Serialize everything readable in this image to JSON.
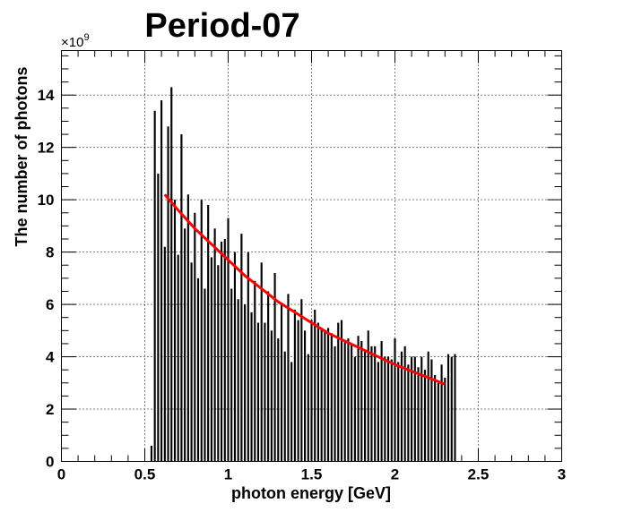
{
  "chart_data": {
    "type": "bar",
    "title": "Period-07",
    "xlabel": "photon energy [GeV]",
    "ylabel": "The number of photons",
    "y_multiplier_label": "×10",
    "y_multiplier_exponent": "9",
    "xlim": [
      0,
      3
    ],
    "ylim": [
      0,
      15.7
    ],
    "x_ticks": [
      "0",
      "0.5",
      "1",
      "1.5",
      "2",
      "2.5",
      "3"
    ],
    "y_ticks": [
      "0",
      "2",
      "4",
      "6",
      "8",
      "10",
      "12",
      "14"
    ],
    "grid": true,
    "bar_width": 0.02,
    "series": [
      {
        "x": [
          0.54,
          0.56,
          0.58,
          0.6,
          0.62,
          0.64,
          0.66,
          0.68,
          0.7,
          0.72,
          0.74,
          0.76,
          0.78,
          0.8,
          0.82,
          0.84,
          0.86,
          0.88,
          0.9,
          0.92,
          0.94,
          0.96,
          0.98,
          1.0,
          1.02,
          1.04,
          1.06,
          1.08,
          1.1,
          1.12,
          1.14,
          1.16,
          1.18,
          1.2,
          1.22,
          1.24,
          1.26,
          1.28,
          1.3,
          1.32,
          1.34,
          1.36,
          1.38,
          1.4,
          1.42,
          1.44,
          1.46,
          1.48,
          1.5,
          1.52,
          1.54,
          1.56,
          1.58,
          1.6,
          1.62,
          1.64,
          1.66,
          1.68,
          1.7,
          1.72,
          1.74,
          1.76,
          1.78,
          1.8,
          1.82,
          1.84,
          1.86,
          1.88,
          1.9,
          1.92,
          1.94,
          1.96,
          1.98,
          2.0,
          2.02,
          2.04,
          2.06,
          2.08,
          2.1,
          2.12,
          2.14,
          2.16,
          2.18,
          2.2,
          2.22,
          2.24,
          2.26,
          2.28,
          2.3,
          2.32,
          2.34,
          2.36
        ],
        "values": [
          0.6,
          13.4,
          11.0,
          13.8,
          8.2,
          12.8,
          14.3,
          10.0,
          7.9,
          12.5,
          8.9,
          10.2,
          7.6,
          9.5,
          7.0,
          10.0,
          6.6,
          9.8,
          7.8,
          8.9,
          7.5,
          8.4,
          8.5,
          9.3,
          6.6,
          8.0,
          6.2,
          8.7,
          6.0,
          8.0,
          5.7,
          6.9,
          5.3,
          7.6,
          5.3,
          6.5,
          5.0,
          7.2,
          4.7,
          6.0,
          4.2,
          6.4,
          3.8,
          5.8,
          5.4,
          6.2,
          5.0,
          4.1,
          5.4,
          5.8,
          5.3,
          5.1,
          5.0,
          5.1,
          4.9,
          4.4,
          5.3,
          5.4,
          4.6,
          4.7,
          4.5,
          4.0,
          4.8,
          4.6,
          4.2,
          5.0,
          4.4,
          4.4,
          3.8,
          4.6,
          4.0,
          4.0,
          3.9,
          4.7,
          3.8,
          4.2,
          4.4,
          3.7,
          4.0,
          4.0,
          3.6,
          4.0,
          3.5,
          4.2,
          3.9,
          3.3,
          3.0,
          3.7,
          3.2,
          4.1,
          4.0,
          4.1
        ],
        "color": "#000000"
      }
    ],
    "fit_curve": {
      "x": [
        0.62,
        0.7,
        0.8,
        0.9,
        1.0,
        1.1,
        1.2,
        1.3,
        1.4,
        1.5,
        1.6,
        1.7,
        1.8,
        1.9,
        2.0,
        2.1,
        2.2,
        2.3
      ],
      "y": [
        10.2,
        9.6,
        8.9,
        8.3,
        7.7,
        7.1,
        6.6,
        6.1,
        5.7,
        5.3,
        4.9,
        4.6,
        4.3,
        4.0,
        3.7,
        3.45,
        3.2,
        2.95
      ],
      "color": "#ff0000"
    },
    "frame_color": "#000000",
    "grid_color": "#000000",
    "background": "#ffffff"
  }
}
